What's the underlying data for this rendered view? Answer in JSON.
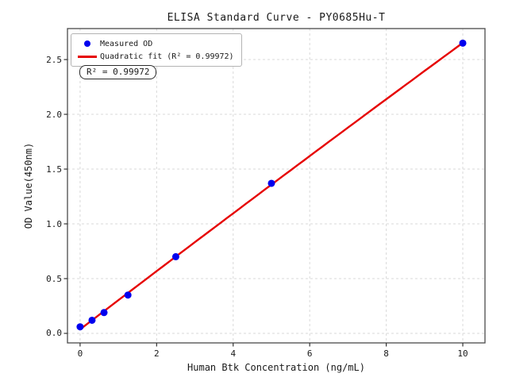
{
  "figure": {
    "title": "ELISA Standard Curve - PY0685Hu-T"
  },
  "chart_data": {
    "type": "scatter",
    "title": "ELISA Standard Curve - PY0685Hu-T",
    "xlabel": "Human Btk Concentration (ng/mL)",
    "ylabel": "OD Value(450nm)",
    "x_ticks": [
      "0",
      "2",
      "4",
      "6",
      "8",
      "10"
    ],
    "x_tick_values": [
      0,
      2,
      4,
      6,
      8,
      10
    ],
    "y_ticks": [
      "0.0",
      "0.5",
      "1.0",
      "1.5",
      "2.0",
      "2.5"
    ],
    "y_tick_values": [
      0,
      0.5,
      1.0,
      1.5,
      2.0,
      2.5
    ],
    "xlim": [
      -0.33,
      10.58
    ],
    "ylim": [
      -0.087,
      2.783
    ],
    "grid": true,
    "grid_color": "#d9d9d9",
    "frame_color": "#4a4a4a",
    "legend_position": "upper left",
    "series": [
      {
        "name": "Measured OD",
        "type": "scatter",
        "color": "#0000ee",
        "x": [
          0,
          0.312,
          0.625,
          1.25,
          2.5,
          5,
          10
        ],
        "y": [
          0.06,
          0.12,
          0.19,
          0.35,
          0.7,
          1.37,
          2.65
        ]
      },
      {
        "name": "Quadratic fit (R² = 0.99972)",
        "type": "quadratic-fit",
        "color": "#e60000",
        "fit_range": [
          0,
          10
        ],
        "r_squared": "0.99972"
      }
    ],
    "annotation": {
      "text": "R² = 0.99972"
    }
  }
}
